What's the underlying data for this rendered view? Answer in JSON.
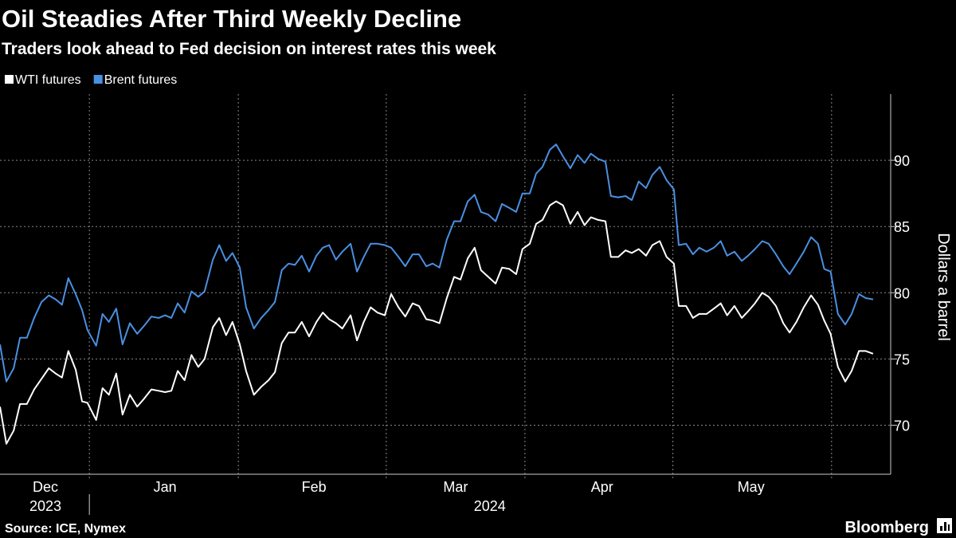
{
  "chart_data": {
    "type": "line",
    "title": "Oil Steadies After Third Weekly Decline",
    "subtitle": "Traders look ahead to Fed decision on interest rates this week",
    "source": "Source: ICE, Nymex",
    "brand": "Bloomberg",
    "y_axis_label": "Dollars a barrel",
    "legend": "top-left",
    "grid": true,
    "x": [
      12.7,
      14.0,
      15.5,
      16.8,
      18.2,
      19.7,
      21.2,
      22.7,
      24.1,
      25.4,
      26.7,
      28.2,
      29.5,
      30.6,
      32.4,
      33.7,
      35.0,
      36.5,
      37.8,
      39.3,
      40.8,
      42.2,
      43.7,
      45.2,
      46.5,
      47.8,
      49.1,
      50.5,
      51.9,
      53.3,
      54.6,
      56.3,
      57.6,
      59.0,
      60.3,
      61.8,
      63.1,
      64.7,
      66.2,
      67.7,
      69.0,
      70.4,
      71.8,
      73.1,
      74.5,
      76.0,
      77.5,
      78.8,
      80.1,
      81.5,
      82.8,
      84.5,
      85.8,
      87.2,
      88.6,
      90.0,
      91.5,
      92.8,
      94.3,
      95.7,
      97.2,
      98.5,
      100.0,
      101.3,
      102.7,
      104.2,
      105.7,
      107.0,
      108.5,
      109.9,
      111.2,
      112.7,
      114.2,
      115.5,
      117.0,
      118.4,
      119.7,
      121.2,
      122.5,
      123.8,
      125.3,
      126.6,
      128.0,
      129.5,
      131.0,
      132.4,
      133.7,
      135.2,
      136.7,
      137.8,
      139.3,
      140.8,
      142.1,
      143.5,
      145.0,
      146.3,
      147.8,
      149.2,
      150.7,
      151.7,
      153.2,
      154.6,
      155.9,
      157.4,
      158.9,
      160.3,
      161.6,
      163.1,
      164.6,
      165.9,
      167.3,
      168.8,
      170.1,
      171.6,
      173.1,
      174.4,
      175.8,
      177.3,
      178.8,
      180.2,
      181.5,
      182.8,
      184.3,
      185.8,
      187.1,
      188.6,
      190.0,
      191.5
    ],
    "xlim": [
      12.7,
      195.1
    ],
    "xticks": [
      {
        "value": 22,
        "label": "Dec"
      },
      {
        "value": 46.5,
        "label": "Jan"
      },
      {
        "value": 77,
        "label": "Feb"
      },
      {
        "value": 106,
        "label": "Mar"
      },
      {
        "value": 136,
        "label": "Apr"
      },
      {
        "value": 166.5,
        "label": "May"
      }
    ],
    "xgrid": [
      31,
      61.5,
      91.8,
      120.2,
      150.5,
      183
    ],
    "year_labels": [
      {
        "value": 22,
        "label": "2023"
      },
      {
        "value": 113,
        "label": "2024"
      }
    ],
    "ylim": [
      66.3,
      95
    ],
    "yticks": [
      70,
      75,
      80,
      85,
      90
    ],
    "series": [
      {
        "name": "WTI futures",
        "color": "#ffffff",
        "values": [
          71.4,
          68.6,
          69.6,
          71.6,
          71.6,
          72.7,
          73.5,
          74.3,
          73.9,
          73.6,
          75.6,
          74.2,
          71.8,
          71.7,
          70.4,
          72.8,
          72.3,
          73.9,
          70.8,
          72.3,
          71.4,
          72.0,
          72.7,
          72.6,
          72.5,
          72.6,
          74.1,
          73.4,
          75.3,
          74.4,
          75.0,
          77.4,
          78.1,
          76.8,
          77.8,
          76.1,
          74.1,
          72.3,
          72.9,
          73.4,
          74.0,
          76.2,
          77.0,
          77.0,
          77.8,
          76.7,
          77.8,
          78.5,
          78.0,
          77.7,
          77.3,
          78.3,
          76.4,
          77.8,
          78.9,
          78.5,
          78.3,
          79.9,
          78.9,
          78.2,
          79.2,
          79.0,
          78.0,
          77.9,
          77.7,
          79.6,
          81.2,
          81.0,
          82.6,
          83.4,
          81.7,
          81.2,
          80.7,
          81.9,
          81.8,
          81.4,
          83.3,
          83.7,
          85.2,
          85.5,
          86.6,
          86.9,
          86.6,
          85.2,
          86.1,
          85.1,
          85.7,
          85.5,
          85.4,
          82.7,
          82.7,
          83.2,
          83.0,
          83.3,
          82.8,
          83.6,
          83.9,
          82.7,
          82.2,
          79.0,
          79.0,
          78.1,
          78.4,
          78.4,
          78.8,
          79.2,
          78.3,
          79.0,
          78.1,
          78.6,
          79.2,
          80.0,
          79.7,
          79.0,
          77.7,
          77.0,
          77.8,
          78.9,
          79.8,
          79.1,
          77.9,
          76.9,
          74.4,
          73.3,
          74.1,
          75.6,
          75.6,
          75.4
        ]
      },
      {
        "name": "Brent futures",
        "color": "#4a90e2",
        "values": [
          76.1,
          73.3,
          74.3,
          76.6,
          76.6,
          78.1,
          79.3,
          79.8,
          79.5,
          79.1,
          81.1,
          79.9,
          78.7,
          77.2,
          76.0,
          78.4,
          77.8,
          78.8,
          76.1,
          77.7,
          76.9,
          77.5,
          78.2,
          78.1,
          78.3,
          78.1,
          79.2,
          78.5,
          80.1,
          79.7,
          80.1,
          82.5,
          83.6,
          82.4,
          83.0,
          81.9,
          78.9,
          77.3,
          78.1,
          78.7,
          79.3,
          81.7,
          82.2,
          82.1,
          82.8,
          81.6,
          82.8,
          83.4,
          83.6,
          82.5,
          83.1,
          83.7,
          81.6,
          82.7,
          83.7,
          83.7,
          83.6,
          83.4,
          82.7,
          82.0,
          82.9,
          82.9,
          82.0,
          82.2,
          81.9,
          84.0,
          85.4,
          85.4,
          86.9,
          87.4,
          86.1,
          85.9,
          85.4,
          86.7,
          86.4,
          86.1,
          87.5,
          87.5,
          89.0,
          89.5,
          90.8,
          91.2,
          90.3,
          89.4,
          90.4,
          89.8,
          90.5,
          90.1,
          89.9,
          87.3,
          87.2,
          87.3,
          87.0,
          88.4,
          87.9,
          88.9,
          89.5,
          88.5,
          87.8,
          83.6,
          83.7,
          82.9,
          83.4,
          83.1,
          83.4,
          83.9,
          82.8,
          83.1,
          82.4,
          82.8,
          83.3,
          83.9,
          83.7,
          82.9,
          82.0,
          81.4,
          82.2,
          83.1,
          84.2,
          83.7,
          81.8,
          81.6,
          78.4,
          77.6,
          78.4,
          79.9,
          79.6,
          79.5
        ]
      }
    ]
  }
}
